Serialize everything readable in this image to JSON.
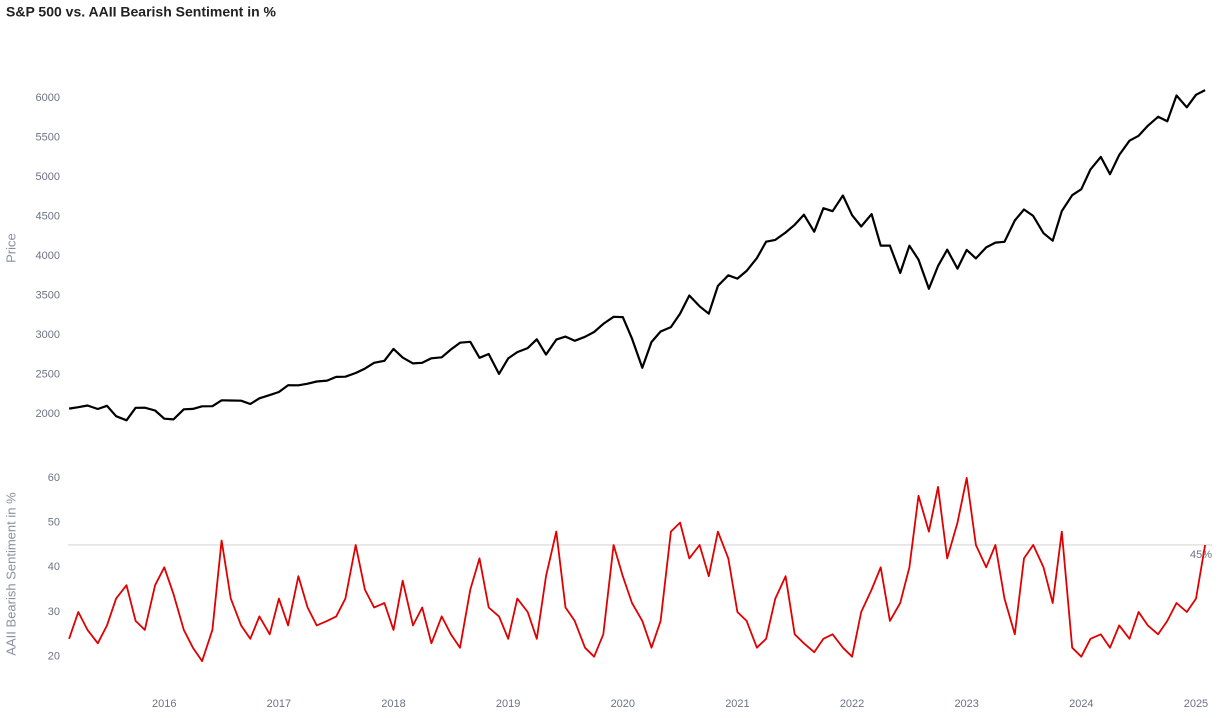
{
  "chart_data": [
    {
      "type": "line",
      "title": "S&P 500 vs. AAII Bearish Sentiment in %",
      "ylabel": "Price",
      "color": "#000000",
      "x": [
        2015.17,
        2015.25,
        2015.33,
        2015.42,
        2015.5,
        2015.58,
        2015.67,
        2015.75,
        2015.83,
        2015.92,
        2016.0,
        2016.08,
        2016.17,
        2016.25,
        2016.33,
        2016.42,
        2016.5,
        2016.58,
        2016.67,
        2016.75,
        2016.83,
        2016.92,
        2017.0,
        2017.08,
        2017.17,
        2017.25,
        2017.33,
        2017.42,
        2017.5,
        2017.58,
        2017.67,
        2017.75,
        2017.83,
        2017.92,
        2018.0,
        2018.08,
        2018.17,
        2018.25,
        2018.33,
        2018.42,
        2018.5,
        2018.58,
        2018.67,
        2018.75,
        2018.83,
        2018.92,
        2019.0,
        2019.08,
        2019.17,
        2019.25,
        2019.33,
        2019.42,
        2019.5,
        2019.58,
        2019.67,
        2019.75,
        2019.83,
        2019.92,
        2020.0,
        2020.08,
        2020.17,
        2020.25,
        2020.33,
        2020.42,
        2020.5,
        2020.58,
        2020.67,
        2020.75,
        2020.83,
        2020.92,
        2021.0,
        2021.08,
        2021.17,
        2021.25,
        2021.33,
        2021.42,
        2021.5,
        2021.58,
        2021.67,
        2021.75,
        2021.83,
        2021.92,
        2022.0,
        2022.08,
        2022.17,
        2022.25,
        2022.33,
        2022.42,
        2022.5,
        2022.58,
        2022.67,
        2022.75,
        2022.83,
        2022.92,
        2023.0,
        2023.08,
        2023.17,
        2023.25,
        2023.33,
        2023.42,
        2023.5,
        2023.58,
        2023.67,
        2023.75,
        2023.83,
        2023.92,
        2024.0,
        2024.08,
        2024.17,
        2024.25,
        2024.33,
        2024.42,
        2024.5,
        2024.58,
        2024.67,
        2024.75,
        2024.83,
        2024.92,
        2025.0,
        2025.08
      ],
      "values": [
        2068,
        2086,
        2107,
        2063,
        2104,
        1972,
        1920,
        2079,
        2080,
        2044,
        1940,
        1932,
        2060,
        2065,
        2097,
        2099,
        2174,
        2171,
        2168,
        2126,
        2199,
        2239,
        2279,
        2364,
        2363,
        2384,
        2412,
        2423,
        2470,
        2472,
        2519,
        2575,
        2648,
        2674,
        2824,
        2714,
        2641,
        2648,
        2705,
        2718,
        2816,
        2902,
        2914,
        2712,
        2760,
        2507,
        2704,
        2784,
        2834,
        2946,
        2752,
        2942,
        2980,
        2926,
        2977,
        3038,
        3141,
        3231,
        3226,
        2954,
        2585,
        2912,
        3044,
        3100,
        3271,
        3500,
        3363,
        3270,
        3622,
        3756,
        3714,
        3811,
        3973,
        4181,
        4204,
        4298,
        4395,
        4523,
        4308,
        4605,
        4567,
        4766,
        4516,
        4374,
        4530,
        4132,
        4132,
        3785,
        4130,
        3955,
        3586,
        3872,
        4080,
        3840,
        4077,
        3970,
        4109,
        4169,
        4180,
        4450,
        4589,
        4508,
        4288,
        4194,
        4568,
        4770,
        4846,
        5096,
        5254,
        5036,
        5278,
        5460,
        5522,
        5648,
        5762,
        5705,
        6032,
        5882,
        6041,
        6100
      ],
      "xlim": [
        2015.16,
        2025.14
      ],
      "ylim": [
        1800,
        6400
      ],
      "yticks": [
        2000,
        2500,
        3000,
        3500,
        4000,
        4500,
        5000,
        5500,
        6000
      ]
    },
    {
      "type": "line",
      "ylabel": "AAII Bearish Sentiment in %",
      "color": "#e00000",
      "x": [
        2015.17,
        2015.25,
        2015.33,
        2015.42,
        2015.5,
        2015.58,
        2015.67,
        2015.75,
        2015.83,
        2015.92,
        2016.0,
        2016.08,
        2016.17,
        2016.25,
        2016.33,
        2016.42,
        2016.5,
        2016.58,
        2016.67,
        2016.75,
        2016.83,
        2016.92,
        2017.0,
        2017.08,
        2017.17,
        2017.25,
        2017.33,
        2017.42,
        2017.5,
        2017.58,
        2017.67,
        2017.75,
        2017.83,
        2017.92,
        2018.0,
        2018.08,
        2018.17,
        2018.25,
        2018.33,
        2018.42,
        2018.5,
        2018.58,
        2018.67,
        2018.75,
        2018.83,
        2018.92,
        2019.0,
        2019.08,
        2019.17,
        2019.25,
        2019.33,
        2019.42,
        2019.5,
        2019.58,
        2019.67,
        2019.75,
        2019.83,
        2019.92,
        2020.0,
        2020.08,
        2020.17,
        2020.25,
        2020.33,
        2020.42,
        2020.5,
        2020.58,
        2020.67,
        2020.75,
        2020.83,
        2020.92,
        2021.0,
        2021.08,
        2021.17,
        2021.25,
        2021.33,
        2021.42,
        2021.5,
        2021.58,
        2021.67,
        2021.75,
        2021.83,
        2021.92,
        2022.0,
        2022.08,
        2022.17,
        2022.25,
        2022.33,
        2022.42,
        2022.5,
        2022.58,
        2022.67,
        2022.75,
        2022.83,
        2022.92,
        2023.0,
        2023.08,
        2023.17,
        2023.25,
        2023.33,
        2023.42,
        2023.5,
        2023.58,
        2023.67,
        2023.75,
        2023.83,
        2023.92,
        2024.0,
        2024.08,
        2024.17,
        2024.25,
        2024.33,
        2024.42,
        2024.5,
        2024.58,
        2024.67,
        2024.75,
        2024.83,
        2024.92,
        2025.0,
        2025.08
      ],
      "values": [
        24,
        30,
        26,
        23,
        27,
        33,
        36,
        28,
        26,
        36,
        40,
        34,
        26,
        22,
        19,
        26,
        46,
        33,
        27,
        24,
        29,
        25,
        33,
        27,
        38,
        31,
        27,
        28,
        29,
        33,
        45,
        35,
        31,
        32,
        26,
        37,
        27,
        31,
        23,
        29,
        25,
        22,
        35,
        42,
        31,
        29,
        24,
        33,
        30,
        24,
        38,
        48,
        31,
        28,
        22,
        20,
        25,
        45,
        38,
        32,
        28,
        22,
        28,
        48,
        50,
        42,
        45,
        38,
        48,
        42,
        30,
        28,
        22,
        24,
        33,
        38,
        25,
        23,
        21,
        24,
        25,
        22,
        20,
        30,
        35,
        40,
        28,
        32,
        40,
        56,
        48,
        58,
        42,
        50,
        60,
        45,
        40,
        45,
        33,
        25,
        42,
        45,
        40,
        32,
        48,
        22,
        20,
        24,
        25,
        22,
        27,
        24,
        30,
        27,
        25,
        28,
        32,
        30,
        33,
        45
      ],
      "xlim": [
        2015.16,
        2025.14
      ],
      "ylim": [
        15,
        62
      ],
      "yticks": [
        20,
        30,
        40,
        50,
        60
      ],
      "xticks": [
        2016,
        2017,
        2018,
        2019,
        2020,
        2021,
        2022,
        2023,
        2024,
        2025
      ],
      "hline": {
        "value": 45,
        "label": "45%",
        "color": "#d8d8d8"
      }
    }
  ]
}
